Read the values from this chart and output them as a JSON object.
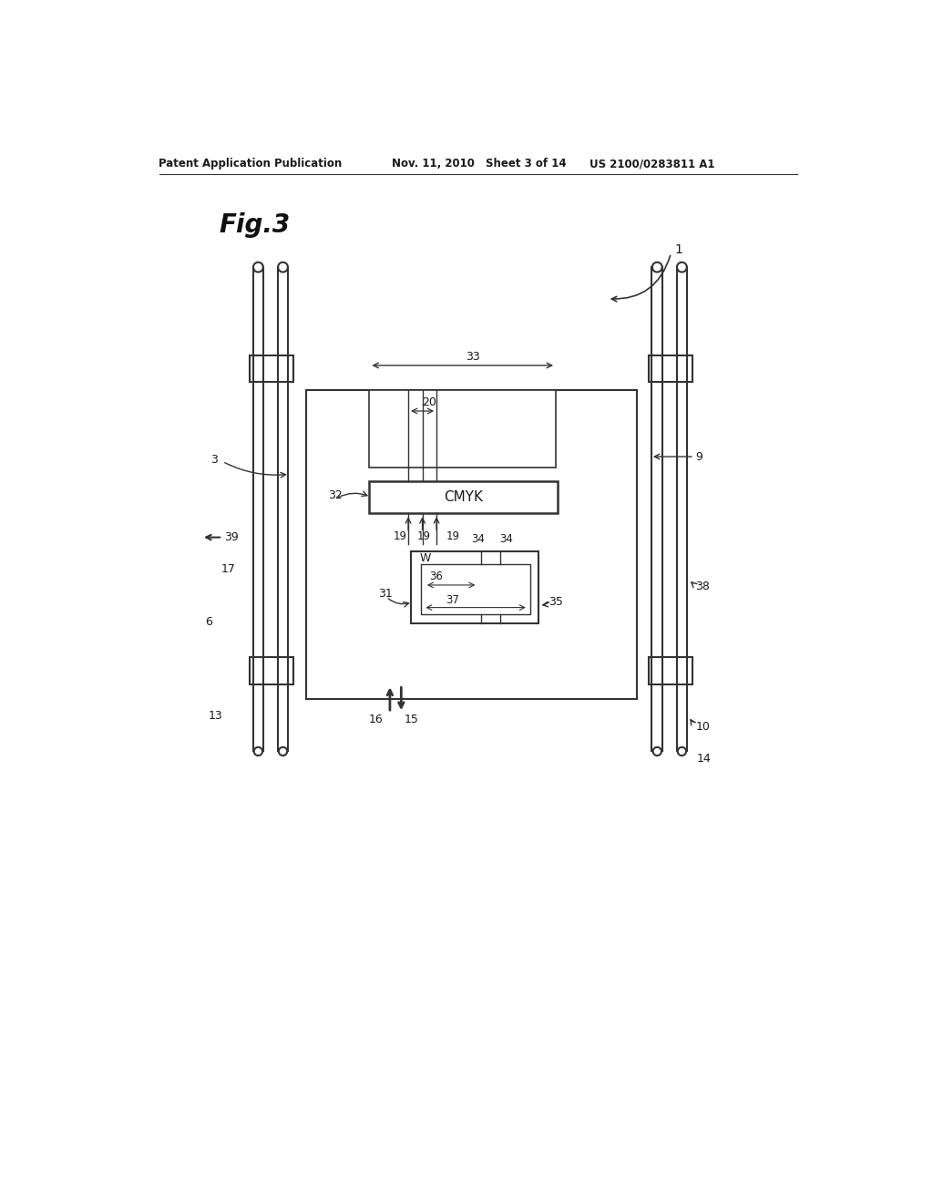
{
  "bg_color": "#ffffff",
  "line_color": "#333333",
  "text_color": "#1a1a1a",
  "header1": "Patent Application Publication",
  "header2": "Nov. 11, 2010",
  "header3": "Sheet 3 of 14",
  "header4": "US 2100/0283811 A1"
}
